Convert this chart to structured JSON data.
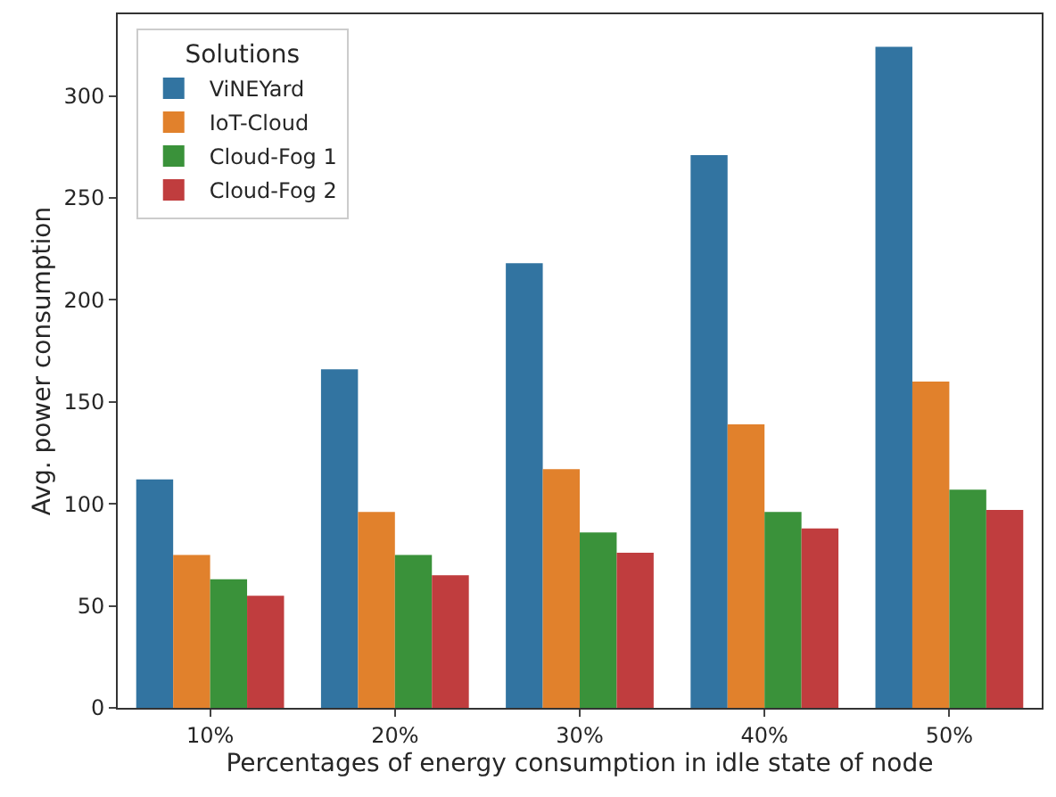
{
  "chart_data": {
    "type": "bar",
    "xlabel": "Percentages of energy consumption in idle state of node",
    "ylabel": "Avg. power consumption",
    "legend_title": "Solutions",
    "categories": [
      "10%",
      "20%",
      "30%",
      "40%",
      "50%"
    ],
    "series": [
      {
        "name": "ViNEYard",
        "color": "#3274a1",
        "values": [
          112,
          166,
          218,
          271,
          324
        ]
      },
      {
        "name": "IoT-Cloud",
        "color": "#e1812c",
        "values": [
          75,
          96,
          117,
          139,
          160
        ]
      },
      {
        "name": "Cloud-Fog 1",
        "color": "#3a923a",
        "values": [
          63,
          75,
          86,
          96,
          107
        ]
      },
      {
        "name": "Cloud-Fog 2",
        "color": "#c03d3e",
        "values": [
          55,
          65,
          76,
          88,
          97
        ]
      }
    ],
    "ylim": [
      0,
      340
    ],
    "yticks": [
      0,
      50,
      100,
      150,
      200,
      250,
      300
    ],
    "grid": false,
    "legend": "top left"
  }
}
